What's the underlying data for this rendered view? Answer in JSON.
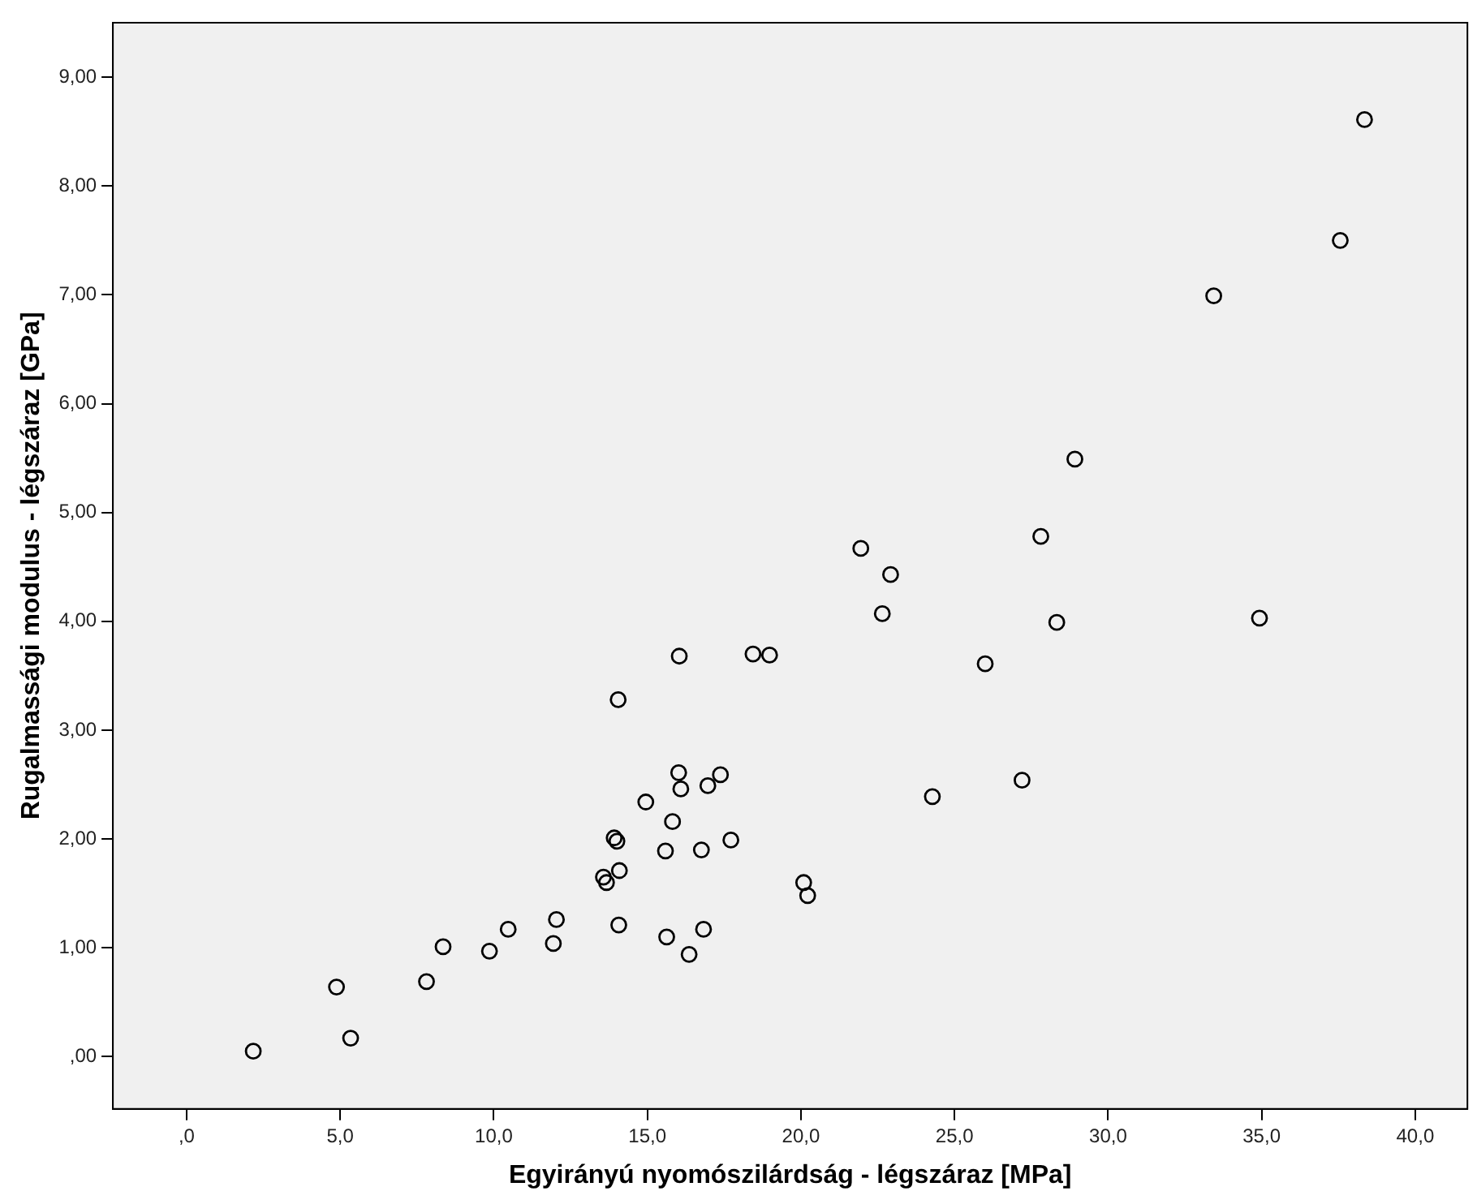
{
  "chart_data": {
    "type": "scatter",
    "xlabel": "Egyirányú nyomószilárdság - légszáraz [MPa]",
    "ylabel": "Rugalmassági modulus - légszáraz [GPa]",
    "x": [
      2.17,
      4.88,
      5.34,
      7.81,
      8.35,
      9.86,
      10.47,
      11.94,
      12.04,
      14.05,
      16.04,
      18.44,
      18.98,
      16.02,
      16.09,
      16.97,
      17.38,
      14.95,
      15.82,
      13.92,
      14.01,
      15.59,
      16.76,
      17.72,
      14.09,
      13.57,
      13.67,
      14.07,
      15.63,
      16.83,
      16.36,
      20.09,
      20.22,
      38.35,
      37.56,
      33.44,
      28.92,
      27.81,
      21.95,
      22.92,
      22.65,
      28.33,
      34.93,
      26.0,
      27.2,
      24.28
    ],
    "series": [
      {
        "color": "#000000",
        "values": [
          0.05,
          0.64,
          0.17,
          0.69,
          1.01,
          0.97,
          1.17,
          1.04,
          1.26,
          3.28,
          3.68,
          3.7,
          3.69,
          2.61,
          2.46,
          2.49,
          2.59,
          2.34,
          2.16,
          2.01,
          1.98,
          1.89,
          1.9,
          1.99,
          1.71,
          1.65,
          1.6,
          1.21,
          1.1,
          1.17,
          0.94,
          1.6,
          1.48,
          8.61,
          7.5,
          6.99,
          5.49,
          4.78,
          4.67,
          4.43,
          4.07,
          3.99,
          4.03,
          3.61,
          2.54,
          2.39
        ]
      }
    ],
    "xlim": [
      -2.4,
      41.7
    ],
    "ylim": [
      -0.48,
      9.5
    ],
    "xticks": [
      {
        "value": 0,
        "label": ",0"
      },
      {
        "value": 5,
        "label": "5,0"
      },
      {
        "value": 10,
        "label": "10,0"
      },
      {
        "value": 15,
        "label": "15,0"
      },
      {
        "value": 20,
        "label": "20,0"
      },
      {
        "value": 25,
        "label": "25,0"
      },
      {
        "value": 30,
        "label": "30,0"
      },
      {
        "value": 35,
        "label": "35,0"
      },
      {
        "value": 40,
        "label": "40,0"
      }
    ],
    "yticks": [
      {
        "value": 0,
        "label": ",00"
      },
      {
        "value": 1,
        "label": "1,00"
      },
      {
        "value": 2,
        "label": "2,00"
      },
      {
        "value": 3,
        "label": "3,00"
      },
      {
        "value": 4,
        "label": "4,00"
      },
      {
        "value": 5,
        "label": "5,00"
      },
      {
        "value": 6,
        "label": "6,00"
      },
      {
        "value": 7,
        "label": "7,00"
      },
      {
        "value": 8,
        "label": "8,00"
      },
      {
        "value": 9,
        "label": "9,00"
      }
    ],
    "grid": false,
    "legend": false,
    "marker": "circle"
  }
}
